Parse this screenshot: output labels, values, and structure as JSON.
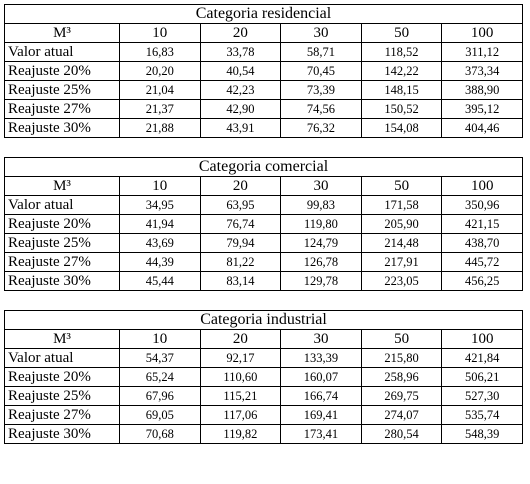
{
  "columns": [
    "M³",
    "10",
    "20",
    "30",
    "50",
    "100"
  ],
  "tables": [
    {
      "title": "Categoria residencial",
      "rows": [
        {
          "label": "Valor atual",
          "values": [
            "16,83",
            "33,78",
            "58,71",
            "118,52",
            "311,12"
          ]
        },
        {
          "label": "Reajuste 20%",
          "values": [
            "20,20",
            "40,54",
            "70,45",
            "142,22",
            "373,34"
          ]
        },
        {
          "label": "Reajuste 25%",
          "values": [
            "21,04",
            "42,23",
            "73,39",
            "148,15",
            "388,90"
          ]
        },
        {
          "label": "Reajuste 27%",
          "values": [
            "21,37",
            "42,90",
            "74,56",
            "150,52",
            "395,12"
          ]
        },
        {
          "label": "Reajuste 30%",
          "values": [
            "21,88",
            "43,91",
            "76,32",
            "154,08",
            "404,46"
          ]
        }
      ]
    },
    {
      "title": "Categoria comercial",
      "rows": [
        {
          "label": "Valor atual",
          "values": [
            "34,95",
            "63,95",
            "99,83",
            "171,58",
            "350,96"
          ]
        },
        {
          "label": "Reajuste 20%",
          "values": [
            "41,94",
            "76,74",
            "119,80",
            "205,90",
            "421,15"
          ]
        },
        {
          "label": "Reajuste 25%",
          "values": [
            "43,69",
            "79,94",
            "124,79",
            "214,48",
            "438,70"
          ]
        },
        {
          "label": "Reajuste 27%",
          "values": [
            "44,39",
            "81,22",
            "126,78",
            "217,91",
            "445,72"
          ]
        },
        {
          "label": "Reajuste 30%",
          "values": [
            "45,44",
            "83,14",
            "129,78",
            "223,05",
            "456,25"
          ]
        }
      ]
    },
    {
      "title": "Categoria industrial",
      "rows": [
        {
          "label": "Valor atual",
          "values": [
            "54,37",
            "92,17",
            "133,39",
            "215,80",
            "421,84"
          ]
        },
        {
          "label": "Reajuste 20%",
          "values": [
            "65,24",
            "110,60",
            "160,07",
            "258,96",
            "506,21"
          ]
        },
        {
          "label": "Reajuste 25%",
          "values": [
            "67,96",
            "115,21",
            "166,74",
            "269,75",
            "527,30"
          ]
        },
        {
          "label": "Reajuste 27%",
          "values": [
            "69,05",
            "117,06",
            "169,41",
            "274,07",
            "535,74"
          ]
        },
        {
          "label": "Reajuste 30%",
          "values": [
            "70,68",
            "119,82",
            "173,41",
            "280,54",
            "548,39"
          ]
        }
      ]
    }
  ]
}
